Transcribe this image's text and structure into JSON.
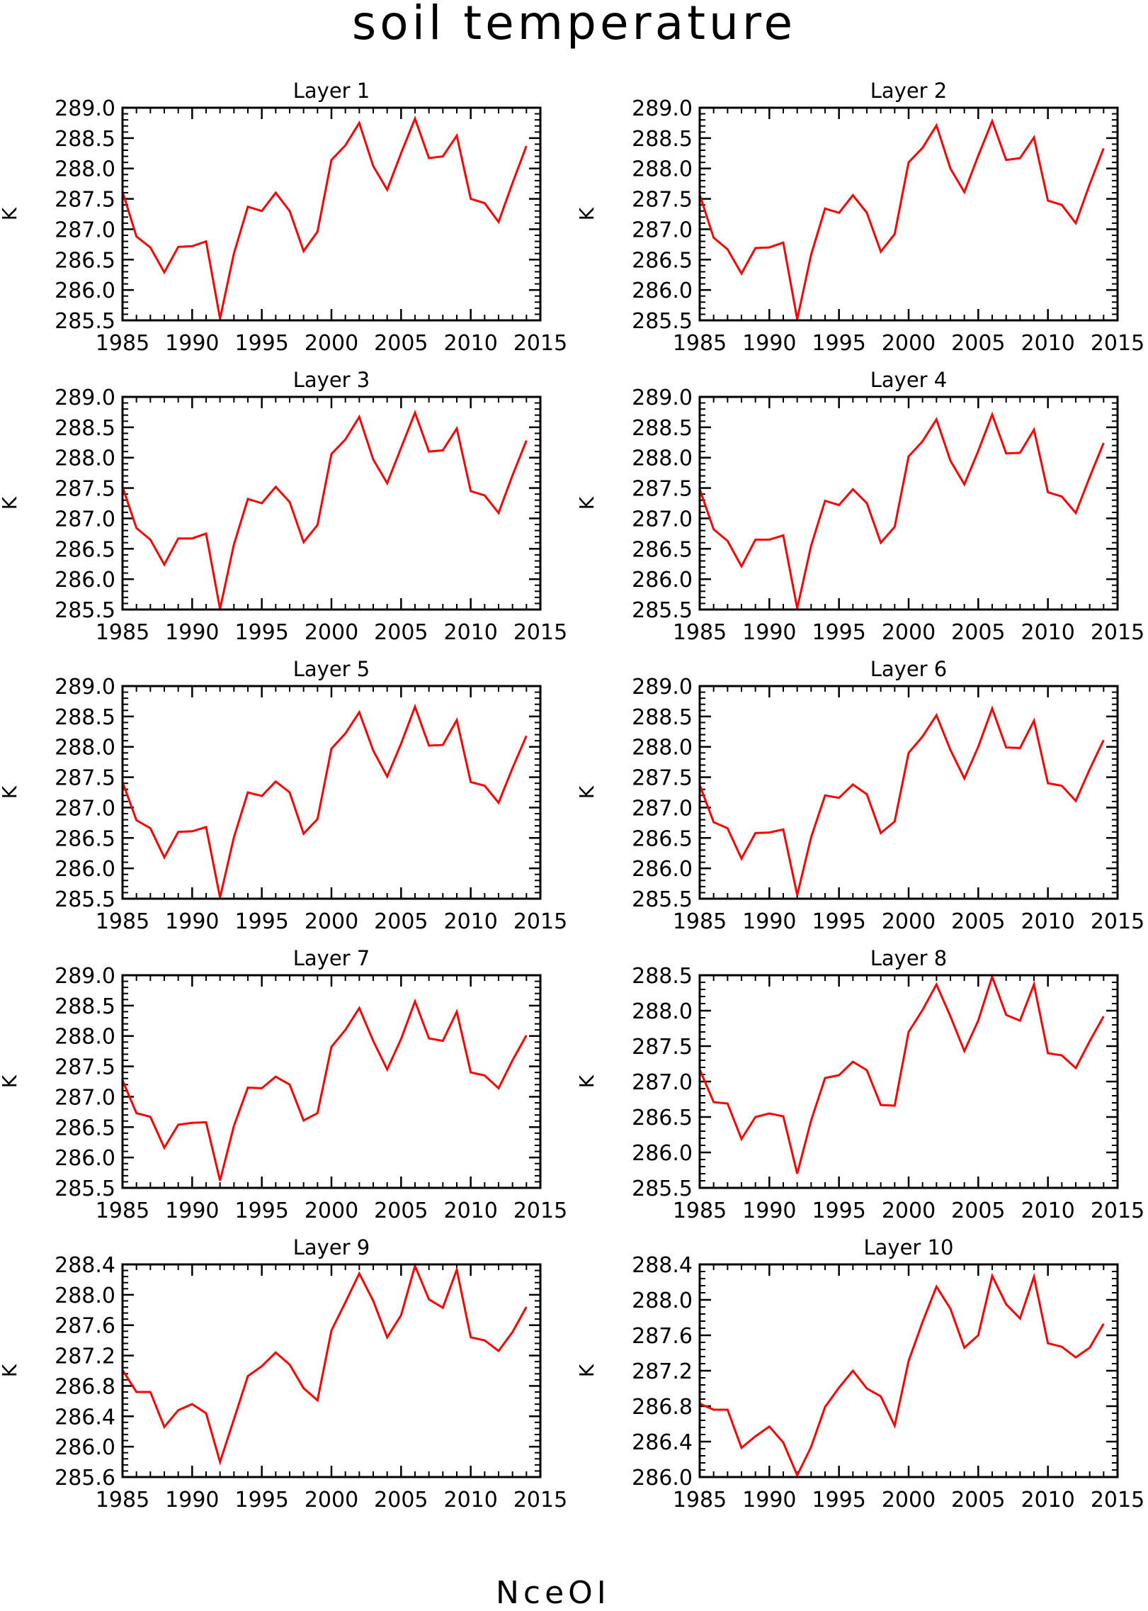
{
  "title": "soil temperature",
  "footer": "NceOI",
  "colors": {
    "line": "#ff0000",
    "axis": "#000000"
  },
  "chart_data": [
    {
      "type": "line",
      "title": "Layer 1",
      "ylabel": "K",
      "xlim": [
        1985,
        2015
      ],
      "ylim": [
        285.5,
        289.0
      ],
      "yticks": [
        "285.5",
        "286.0",
        "286.5",
        "287.0",
        "287.5",
        "288.0",
        "288.5",
        "289.0"
      ],
      "xticks": [
        "1985",
        "1990",
        "1995",
        "2000",
        "2005",
        "2010",
        "2015"
      ],
      "x": [
        1985,
        1986,
        1987,
        1988,
        1989,
        1990,
        1991,
        1992,
        1993,
        1994,
        1995,
        1996,
        1997,
        1998,
        1999,
        2000,
        2001,
        2002,
        2003,
        2004,
        2005,
        2006,
        2007,
        2008,
        2009,
        2010,
        2011,
        2012,
        2013,
        2014
      ],
      "y": [
        287.62,
        286.88,
        286.7,
        286.29,
        286.71,
        286.72,
        286.8,
        285.53,
        286.6,
        287.37,
        287.3,
        287.6,
        287.3,
        286.64,
        286.96,
        288.14,
        288.38,
        288.75,
        288.04,
        287.65,
        288.25,
        288.82,
        288.17,
        288.2,
        288.54,
        287.5,
        287.43,
        287.12,
        287.76,
        288.37
      ]
    },
    {
      "type": "line",
      "title": "Layer 2",
      "ylabel": "K",
      "xlim": [
        1985,
        2015
      ],
      "ylim": [
        285.5,
        289.0
      ],
      "yticks": [
        "285.5",
        "286.0",
        "286.5",
        "287.0",
        "287.5",
        "288.0",
        "288.5",
        "289.0"
      ],
      "xticks": [
        "1985",
        "1990",
        "1995",
        "2000",
        "2005",
        "2010",
        "2015"
      ],
      "x": [
        1985,
        1986,
        1987,
        1988,
        1989,
        1990,
        1991,
        1992,
        1993,
        1994,
        1995,
        1996,
        1997,
        1998,
        1999,
        2000,
        2001,
        2002,
        2003,
        2004,
        2005,
        2006,
        2007,
        2008,
        2009,
        2010,
        2011,
        2012,
        2013,
        2014
      ],
      "y": [
        287.57,
        286.86,
        286.67,
        286.27,
        286.69,
        286.7,
        286.78,
        285.52,
        286.58,
        287.34,
        287.27,
        287.56,
        287.27,
        286.63,
        286.92,
        288.1,
        288.34,
        288.71,
        288.0,
        287.61,
        288.21,
        288.78,
        288.14,
        288.17,
        288.51,
        287.47,
        287.4,
        287.1,
        287.74,
        288.33
      ]
    },
    {
      "type": "line",
      "title": "Layer 3",
      "ylabel": "K",
      "xlim": [
        1985,
        2015
      ],
      "ylim": [
        285.5,
        289.0
      ],
      "yticks": [
        "285.5",
        "286.0",
        "286.5",
        "287.0",
        "287.5",
        "288.0",
        "288.5",
        "289.0"
      ],
      "xticks": [
        "1985",
        "1990",
        "1995",
        "2000",
        "2005",
        "2010",
        "2015"
      ],
      "x": [
        1985,
        1986,
        1987,
        1988,
        1989,
        1990,
        1991,
        1992,
        1993,
        1994,
        1995,
        1996,
        1997,
        1998,
        1999,
        2000,
        2001,
        2002,
        2003,
        2004,
        2005,
        2006,
        2007,
        2008,
        2009,
        2010,
        2011,
        2012,
        2013,
        2014
      ],
      "y": [
        287.52,
        286.84,
        286.65,
        286.24,
        286.67,
        286.67,
        286.75,
        285.51,
        286.57,
        287.32,
        287.25,
        287.52,
        287.27,
        286.61,
        286.89,
        288.06,
        288.3,
        288.67,
        287.97,
        287.58,
        288.16,
        288.74,
        288.1,
        288.12,
        288.48,
        287.45,
        287.38,
        287.09,
        287.71,
        288.28
      ]
    },
    {
      "type": "line",
      "title": "Layer 4",
      "ylabel": "K",
      "xlim": [
        1985,
        2015
      ],
      "ylim": [
        285.5,
        289.0
      ],
      "yticks": [
        "285.5",
        "286.0",
        "286.5",
        "287.0",
        "287.5",
        "288.0",
        "288.5",
        "289.0"
      ],
      "xticks": [
        "1985",
        "1990",
        "1995",
        "2000",
        "2005",
        "2010",
        "2015"
      ],
      "x": [
        1985,
        1986,
        1987,
        1988,
        1989,
        1990,
        1991,
        1992,
        1993,
        1994,
        1995,
        1996,
        1997,
        1998,
        1999,
        2000,
        2001,
        2002,
        2003,
        2004,
        2005,
        2006,
        2007,
        2008,
        2009,
        2010,
        2011,
        2012,
        2013,
        2014
      ],
      "y": [
        287.48,
        286.82,
        286.63,
        286.21,
        286.65,
        286.65,
        286.72,
        285.52,
        286.55,
        287.29,
        287.22,
        287.48,
        287.25,
        286.6,
        286.86,
        288.02,
        288.27,
        288.63,
        287.95,
        287.56,
        288.11,
        288.71,
        288.07,
        288.08,
        288.46,
        287.43,
        287.36,
        287.09,
        287.68,
        288.24
      ]
    },
    {
      "type": "line",
      "title": "Layer 5",
      "ylabel": "K",
      "xlim": [
        1985,
        2015
      ],
      "ylim": [
        285.5,
        289.0
      ],
      "yticks": [
        "285.5",
        "286.0",
        "286.5",
        "287.0",
        "287.5",
        "288.0",
        "288.5",
        "289.0"
      ],
      "xticks": [
        "1985",
        "1990",
        "1995",
        "2000",
        "2005",
        "2010",
        "2015"
      ],
      "x": [
        1985,
        1986,
        1987,
        1988,
        1989,
        1990,
        1991,
        1992,
        1993,
        1994,
        1995,
        1996,
        1997,
        1998,
        1999,
        2000,
        2001,
        2002,
        2003,
        2004,
        2005,
        2006,
        2007,
        2008,
        2009,
        2010,
        2011,
        2012,
        2013,
        2014
      ],
      "y": [
        287.42,
        286.79,
        286.66,
        286.18,
        286.6,
        286.61,
        286.68,
        285.52,
        286.51,
        287.25,
        287.19,
        287.43,
        287.25,
        286.57,
        286.81,
        287.97,
        288.22,
        288.57,
        287.94,
        287.51,
        288.05,
        288.66,
        288.02,
        288.03,
        288.44,
        287.42,
        287.36,
        287.08,
        287.65,
        288.18
      ]
    },
    {
      "type": "line",
      "title": "Layer 6",
      "ylabel": "K",
      "xlim": [
        1985,
        2015
      ],
      "ylim": [
        285.5,
        289.0
      ],
      "yticks": [
        "285.5",
        "286.0",
        "286.5",
        "287.0",
        "287.5",
        "288.0",
        "288.5",
        "289.0"
      ],
      "xticks": [
        "1985",
        "1990",
        "1995",
        "2000",
        "2005",
        "2010",
        "2015"
      ],
      "x": [
        1985,
        1986,
        1987,
        1988,
        1989,
        1990,
        1991,
        1992,
        1993,
        1994,
        1995,
        1996,
        1997,
        1998,
        1999,
        2000,
        2001,
        2002,
        2003,
        2004,
        2005,
        2006,
        2007,
        2008,
        2009,
        2010,
        2011,
        2012,
        2013,
        2014
      ],
      "y": [
        287.37,
        286.76,
        286.66,
        286.16,
        286.58,
        286.59,
        286.64,
        285.56,
        286.51,
        287.2,
        287.16,
        287.38,
        287.22,
        286.58,
        286.77,
        287.9,
        288.17,
        288.52,
        287.95,
        287.48,
        288.0,
        288.63,
        287.99,
        287.98,
        288.43,
        287.4,
        287.36,
        287.11,
        287.63,
        288.11
      ]
    },
    {
      "type": "line",
      "title": "Layer 7",
      "ylabel": "K",
      "xlim": [
        1985,
        2015
      ],
      "ylim": [
        285.5,
        289.0
      ],
      "yticks": [
        "285.5",
        "286.0",
        "286.5",
        "287.0",
        "287.5",
        "288.0",
        "288.5",
        "289.0"
      ],
      "xticks": [
        "1985",
        "1990",
        "1995",
        "2000",
        "2005",
        "2010",
        "2015"
      ],
      "x": [
        1985,
        1986,
        1987,
        1988,
        1989,
        1990,
        1991,
        1992,
        1993,
        1994,
        1995,
        1996,
        1997,
        1998,
        1999,
        2000,
        2001,
        2002,
        2003,
        2004,
        2005,
        2006,
        2007,
        2008,
        2009,
        2010,
        2011,
        2012,
        2013,
        2014
      ],
      "y": [
        287.27,
        286.73,
        286.67,
        286.16,
        286.54,
        286.57,
        286.58,
        285.62,
        286.52,
        287.15,
        287.14,
        287.33,
        287.2,
        286.61,
        286.73,
        287.82,
        288.1,
        288.46,
        287.92,
        287.45,
        287.95,
        288.57,
        287.96,
        287.92,
        288.4,
        287.4,
        287.35,
        287.14,
        287.6,
        288.01
      ]
    },
    {
      "type": "line",
      "title": "Layer 8",
      "ylabel": "K",
      "xlim": [
        1985,
        2015
      ],
      "ylim": [
        285.5,
        288.5
      ],
      "yticks": [
        "285.5",
        "286.0",
        "286.5",
        "287.0",
        "287.5",
        "288.0",
        "288.5"
      ],
      "xticks": [
        "1985",
        "1990",
        "1995",
        "2000",
        "2005",
        "2010",
        "2015"
      ],
      "x": [
        1985,
        1986,
        1987,
        1988,
        1989,
        1990,
        1991,
        1992,
        1993,
        1994,
        1995,
        1996,
        1997,
        1998,
        1999,
        2000,
        2001,
        2002,
        2003,
        2004,
        2005,
        2006,
        2007,
        2008,
        2009,
        2010,
        2011,
        2012,
        2013,
        2014
      ],
      "y": [
        287.17,
        286.71,
        286.69,
        286.19,
        286.5,
        286.55,
        286.51,
        285.7,
        286.45,
        287.05,
        287.09,
        287.28,
        287.16,
        286.67,
        286.66,
        287.7,
        288.01,
        288.37,
        287.92,
        287.43,
        287.86,
        288.48,
        287.94,
        287.86,
        288.37,
        287.4,
        287.37,
        287.19,
        287.57,
        287.92
      ]
    },
    {
      "type": "line",
      "title": "Layer 9",
      "ylabel": "K",
      "xlim": [
        1985,
        2015
      ],
      "ylim": [
        285.6,
        288.4
      ],
      "yticks": [
        "285.6",
        "286.0",
        "286.4",
        "286.8",
        "287.2",
        "287.6",
        "288.0",
        "288.4"
      ],
      "xticks": [
        "1985",
        "1990",
        "1995",
        "2000",
        "2005",
        "2010",
        "2015"
      ],
      "x": [
        1985,
        1986,
        1987,
        1988,
        1989,
        1990,
        1991,
        1992,
        1993,
        1994,
        1995,
        1996,
        1997,
        1998,
        1999,
        2000,
        2001,
        2002,
        2003,
        2004,
        2005,
        2006,
        2007,
        2008,
        2009,
        2010,
        2011,
        2012,
        2013,
        2014
      ],
      "y": [
        287.01,
        286.72,
        286.72,
        286.26,
        286.48,
        286.56,
        286.44,
        285.8,
        286.36,
        286.93,
        287.06,
        287.24,
        287.08,
        286.77,
        286.61,
        287.53,
        287.9,
        288.28,
        287.92,
        287.44,
        287.73,
        288.38,
        287.94,
        287.83,
        288.33,
        287.44,
        287.4,
        287.26,
        287.51,
        287.84
      ]
    },
    {
      "type": "line",
      "title": "Layer 10",
      "ylabel": "K",
      "xlim": [
        1985,
        2015
      ],
      "ylim": [
        286.0,
        288.4
      ],
      "yticks": [
        "286.0",
        "286.4",
        "286.8",
        "287.2",
        "287.6",
        "288.0",
        "288.4"
      ],
      "xticks": [
        "1985",
        "1990",
        "1995",
        "2000",
        "2005",
        "2010",
        "2015"
      ],
      "x": [
        1985,
        1986,
        1987,
        1988,
        1989,
        1990,
        1991,
        1992,
        1993,
        1994,
        1995,
        1996,
        1997,
        1998,
        1999,
        2000,
        2001,
        2002,
        2003,
        2004,
        2005,
        2006,
        2007,
        2008,
        2009,
        2010,
        2011,
        2012,
        2013,
        2014
      ],
      "y": [
        286.83,
        286.76,
        286.76,
        286.33,
        286.46,
        286.57,
        286.39,
        286.02,
        286.34,
        286.79,
        287.01,
        287.2,
        287.0,
        286.91,
        286.58,
        287.31,
        287.75,
        288.15,
        287.9,
        287.46,
        287.6,
        288.27,
        287.95,
        287.79,
        288.26,
        287.51,
        287.47,
        287.35,
        287.46,
        287.73
      ]
    }
  ]
}
